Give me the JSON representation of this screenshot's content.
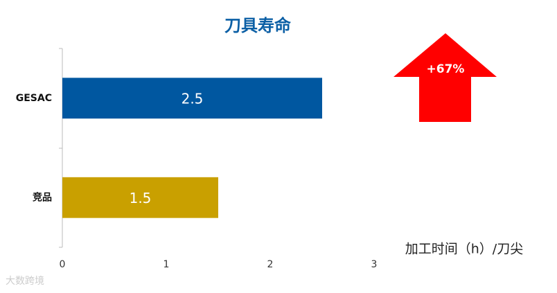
{
  "chart_data": {
    "type": "bar",
    "orientation": "horizontal",
    "title": "刀具寿命",
    "categories": [
      "GESAC",
      "竞品"
    ],
    "values": [
      2.5,
      1.5
    ],
    "colors": [
      "#0057a0",
      "#c9a000"
    ],
    "xlim": [
      0,
      3
    ],
    "xticks": [
      0,
      1,
      2,
      3
    ],
    "x_label": "加工时间（h）/刀尖",
    "annotation": "+67%",
    "annotation_color": "#ff0000",
    "title_color": "#0b5fa5"
  },
  "watermark": "大数跨境"
}
